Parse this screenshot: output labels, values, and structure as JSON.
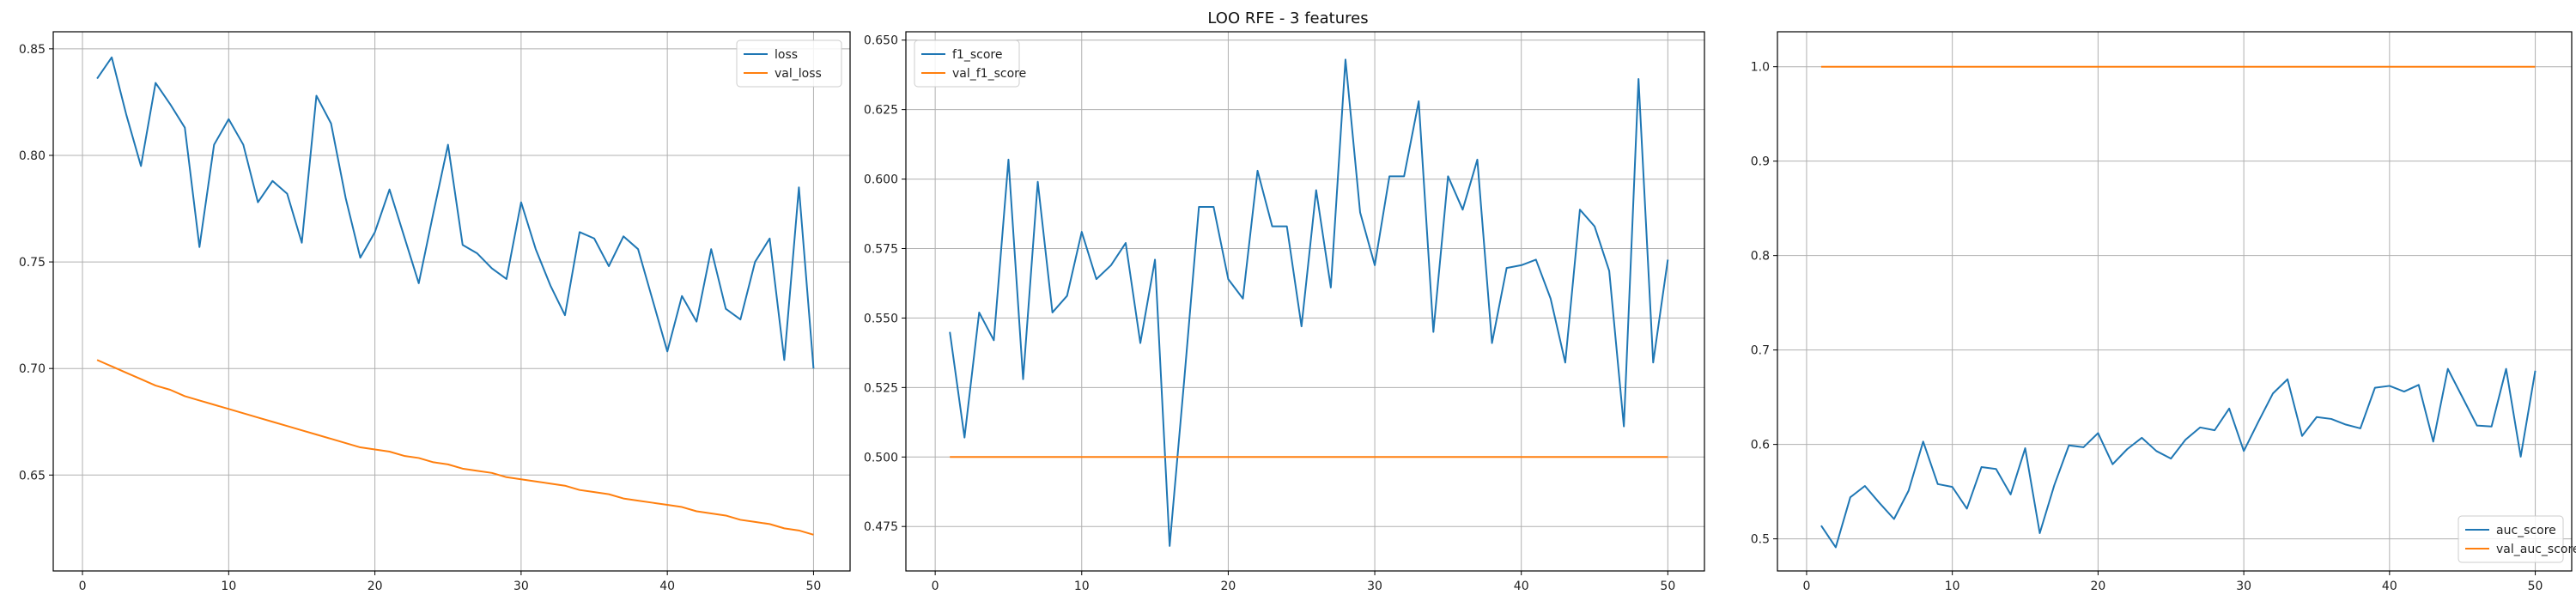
{
  "figure": {
    "title": "LOO RFE - 3 features"
  },
  "colors": {
    "train": "#1f77b4",
    "val": "#ff7f0e",
    "grid": "#b0b0b0",
    "axis": "#000000"
  },
  "chart_data": [
    {
      "type": "line",
      "title": "",
      "xlabel": "",
      "ylabel": "",
      "xlim": [
        -2,
        52.5
      ],
      "ylim": [
        0.605,
        0.858
      ],
      "xticks": [
        0,
        10,
        20,
        30,
        40,
        50
      ],
      "yticks": [
        0.65,
        0.7,
        0.75,
        0.8,
        0.85
      ],
      "xtick_labels": [
        "0",
        "10",
        "20",
        "30",
        "40",
        "50"
      ],
      "ytick_labels": [
        "0.65",
        "0.70",
        "0.75",
        "0.80",
        "0.85"
      ],
      "grid": true,
      "legend": "upper right",
      "x": [
        1,
        2,
        3,
        4,
        5,
        6,
        7,
        8,
        9,
        10,
        11,
        12,
        13,
        14,
        15,
        16,
        17,
        18,
        19,
        20,
        21,
        22,
        23,
        24,
        25,
        26,
        27,
        28,
        29,
        30,
        31,
        32,
        33,
        34,
        35,
        36,
        37,
        38,
        39,
        40,
        41,
        42,
        43,
        44,
        45,
        46,
        47,
        48,
        49,
        50
      ],
      "series": [
        {
          "name": "loss",
          "color": "#1f77b4",
          "values": [
            0.836,
            0.846,
            0.819,
            0.795,
            0.834,
            0.824,
            0.813,
            0.757,
            0.805,
            0.817,
            0.805,
            0.778,
            0.788,
            0.782,
            0.759,
            0.828,
            0.815,
            0.78,
            0.752,
            0.764,
            0.784,
            0.762,
            0.74,
            0.773,
            0.805,
            0.758,
            0.754,
            0.747,
            0.742,
            0.778,
            0.756,
            0.739,
            0.725,
            0.764,
            0.761,
            0.748,
            0.762,
            0.756,
            0.732,
            0.708,
            0.734,
            0.722,
            0.756,
            0.728,
            0.723,
            0.75,
            0.761,
            0.704,
            0.785,
            0.7
          ]
        },
        {
          "name": "val_loss",
          "color": "#ff7f0e",
          "values": [
            0.704,
            0.701,
            0.698,
            0.695,
            0.692,
            0.69,
            0.687,
            0.685,
            0.683,
            0.681,
            0.679,
            0.677,
            0.675,
            0.673,
            0.671,
            0.669,
            0.667,
            0.665,
            0.663,
            0.662,
            0.661,
            0.659,
            0.658,
            0.656,
            0.655,
            0.653,
            0.652,
            0.651,
            0.649,
            0.648,
            0.647,
            0.646,
            0.645,
            0.643,
            0.642,
            0.641,
            0.639,
            0.638,
            0.637,
            0.636,
            0.635,
            0.633,
            0.632,
            0.631,
            0.629,
            0.628,
            0.627,
            0.625,
            0.624,
            0.622
          ]
        }
      ]
    },
    {
      "type": "line",
      "title": "",
      "xlabel": "",
      "ylabel": "",
      "xlim": [
        -2,
        52.5
      ],
      "ylim": [
        0.459,
        0.653
      ],
      "xticks": [
        0,
        10,
        20,
        30,
        40,
        50
      ],
      "yticks": [
        0.475,
        0.5,
        0.525,
        0.55,
        0.575,
        0.6,
        0.625,
        0.65
      ],
      "xtick_labels": [
        "0",
        "10",
        "20",
        "30",
        "40",
        "50"
      ],
      "ytick_labels": [
        "0.475",
        "0.500",
        "0.525",
        "0.550",
        "0.575",
        "0.600",
        "0.625",
        "0.650"
      ],
      "grid": true,
      "legend": "upper left",
      "x": [
        1,
        2,
        3,
        4,
        5,
        6,
        7,
        8,
        9,
        10,
        11,
        12,
        13,
        14,
        15,
        16,
        17,
        18,
        19,
        20,
        21,
        22,
        23,
        24,
        25,
        26,
        27,
        28,
        29,
        30,
        31,
        32,
        33,
        34,
        35,
        36,
        37,
        38,
        39,
        40,
        41,
        42,
        43,
        44,
        45,
        46,
        47,
        48,
        49,
        50
      ],
      "series": [
        {
          "name": "f1_score",
          "color": "#1f77b4",
          "values": [
            0.545,
            0.507,
            0.552,
            0.542,
            0.607,
            0.528,
            0.599,
            0.552,
            0.558,
            0.581,
            0.564,
            0.569,
            0.577,
            0.541,
            0.571,
            0.468,
            0.528,
            0.59,
            0.59,
            0.564,
            0.557,
            0.603,
            0.583,
            0.583,
            0.547,
            0.596,
            0.561,
            0.643,
            0.588,
            0.569,
            0.601,
            0.601,
            0.628,
            0.545,
            0.601,
            0.589,
            0.607,
            0.541,
            0.568,
            0.569,
            0.571,
            0.557,
            0.534,
            0.589,
            0.583,
            0.567,
            0.511,
            0.636,
            0.534,
            0.571
          ]
        },
        {
          "name": "val_f1_score",
          "color": "#ff7f0e",
          "values": [
            0.5,
            0.5,
            0.5,
            0.5,
            0.5,
            0.5,
            0.5,
            0.5,
            0.5,
            0.5,
            0.5,
            0.5,
            0.5,
            0.5,
            0.5,
            0.5,
            0.5,
            0.5,
            0.5,
            0.5,
            0.5,
            0.5,
            0.5,
            0.5,
            0.5,
            0.5,
            0.5,
            0.5,
            0.5,
            0.5,
            0.5,
            0.5,
            0.5,
            0.5,
            0.5,
            0.5,
            0.5,
            0.5,
            0.5,
            0.5,
            0.5,
            0.5,
            0.5,
            0.5,
            0.5,
            0.5,
            0.5,
            0.5,
            0.5,
            0.5
          ]
        }
      ]
    },
    {
      "type": "line",
      "title": "",
      "xlabel": "",
      "ylabel": "",
      "xlim": [
        -2,
        52.5
      ],
      "ylim": [
        0.466,
        1.037
      ],
      "xticks": [
        0,
        10,
        20,
        30,
        40,
        50
      ],
      "yticks": [
        0.5,
        0.6,
        0.7,
        0.8,
        0.9,
        1.0
      ],
      "xtick_labels": [
        "0",
        "10",
        "20",
        "30",
        "40",
        "50"
      ],
      "ytick_labels": [
        "0.5",
        "0.6",
        "0.7",
        "0.8",
        "0.9",
        "1.0"
      ],
      "grid": true,
      "legend": "lower right",
      "x": [
        1,
        2,
        3,
        4,
        5,
        6,
        7,
        8,
        9,
        10,
        11,
        12,
        13,
        14,
        15,
        16,
        17,
        18,
        19,
        20,
        21,
        22,
        23,
        24,
        25,
        26,
        27,
        28,
        29,
        30,
        31,
        32,
        33,
        34,
        35,
        36,
        37,
        38,
        39,
        40,
        41,
        42,
        43,
        44,
        45,
        46,
        47,
        48,
        49,
        50
      ],
      "series": [
        {
          "name": "auc_score",
          "color": "#1f77b4",
          "values": [
            0.514,
            0.491,
            0.544,
            0.556,
            0.538,
            0.521,
            0.551,
            0.603,
            0.558,
            0.555,
            0.532,
            0.576,
            0.574,
            0.547,
            0.596,
            0.506,
            0.557,
            0.599,
            0.597,
            0.612,
            0.579,
            0.595,
            0.607,
            0.593,
            0.585,
            0.605,
            0.618,
            0.615,
            0.638,
            0.593,
            0.624,
            0.654,
            0.669,
            0.609,
            0.629,
            0.627,
            0.621,
            0.617,
            0.66,
            0.662,
            0.656,
            0.663,
            0.603,
            0.68,
            0.65,
            0.62,
            0.619,
            0.68,
            0.587,
            0.678
          ]
        },
        {
          "name": "val_auc_score",
          "color": "#ff7f0e",
          "values": [
            1.0,
            1.0,
            1.0,
            1.0,
            1.0,
            1.0,
            1.0,
            1.0,
            1.0,
            1.0,
            1.0,
            1.0,
            1.0,
            1.0,
            1.0,
            1.0,
            1.0,
            1.0,
            1.0,
            1.0,
            1.0,
            1.0,
            1.0,
            1.0,
            1.0,
            1.0,
            1.0,
            1.0,
            1.0,
            1.0,
            1.0,
            1.0,
            1.0,
            1.0,
            1.0,
            1.0,
            1.0,
            1.0,
            1.0,
            1.0,
            1.0,
            1.0,
            1.0,
            1.0,
            1.0,
            1.0,
            1.0,
            1.0,
            1.0,
            1.0
          ]
        }
      ]
    }
  ]
}
